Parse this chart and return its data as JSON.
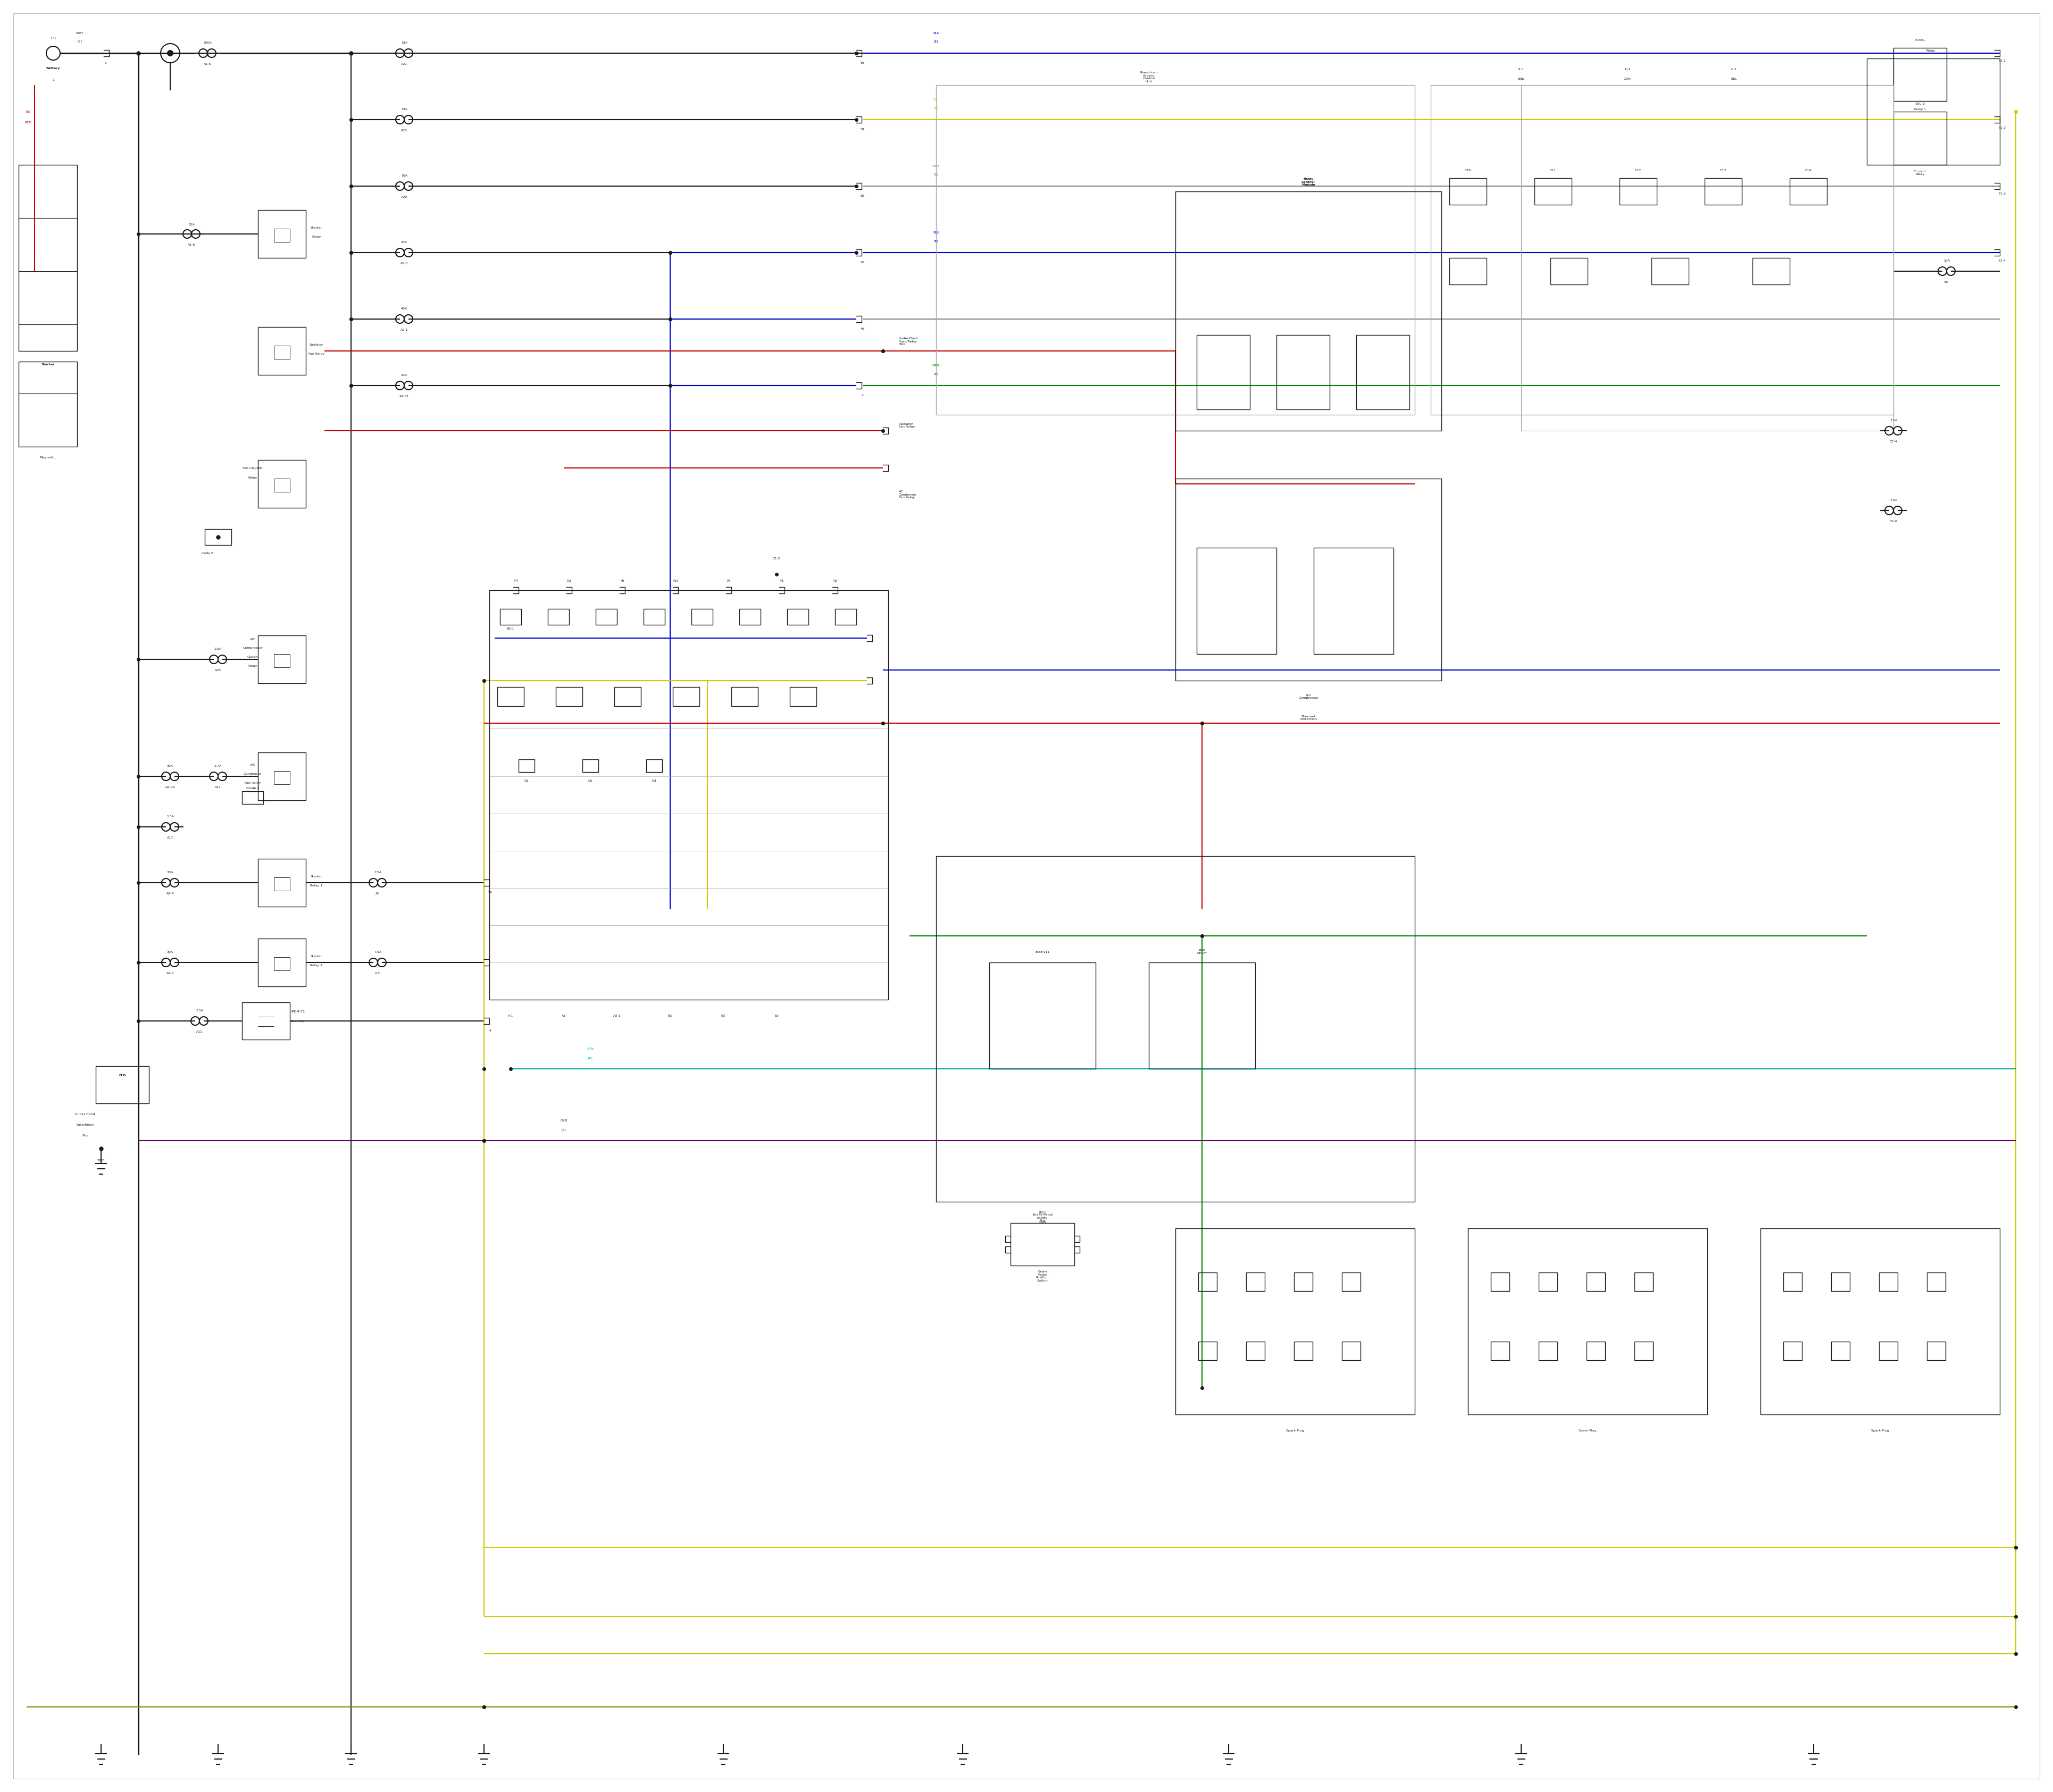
{
  "bg_color": "#ffffff",
  "colors": {
    "black": "#1a1a1a",
    "red": "#cc0000",
    "blue": "#0000cc",
    "yellow": "#cccc00",
    "green": "#008800",
    "cyan": "#00aaaa",
    "purple": "#660066",
    "gray": "#888888",
    "dark_gray": "#555555",
    "olive": "#888800",
    "lt_gray": "#aaaaaa"
  },
  "fig_width": 38.4,
  "fig_height": 33.5
}
